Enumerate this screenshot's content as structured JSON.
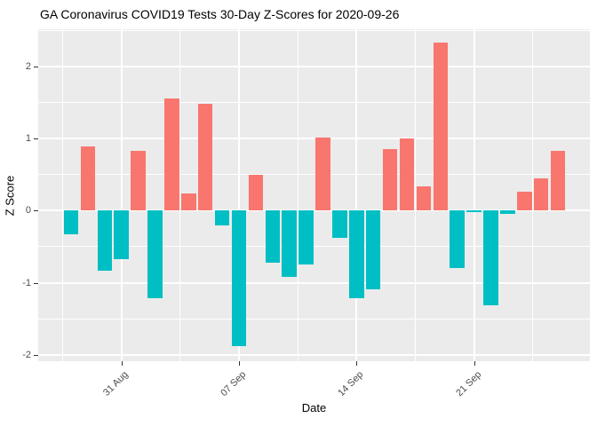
{
  "title": "GA Coronavirus COVID19 Tests 30-Day Z-Scores for 2020-09-26",
  "chart_data": {
    "type": "bar",
    "title": "GA Coronavirus COVID19 Tests 30-Day Z-Scores for 2020-09-26",
    "xlabel": "Date",
    "ylabel": "Z Score",
    "dates": [
      "2020-08-28",
      "2020-08-29",
      "2020-08-30",
      "2020-08-31",
      "2020-09-01",
      "2020-09-02",
      "2020-09-03",
      "2020-09-04",
      "2020-09-05",
      "2020-09-06",
      "2020-09-07",
      "2020-09-08",
      "2020-09-09",
      "2020-09-10",
      "2020-09-11",
      "2020-09-12",
      "2020-09-13",
      "2020-09-14",
      "2020-09-15",
      "2020-09-16",
      "2020-09-17",
      "2020-09-18",
      "2020-09-19",
      "2020-09-20",
      "2020-09-21",
      "2020-09-22",
      "2020-09-23",
      "2020-09-24",
      "2020-09-25",
      "2020-09-26"
    ],
    "values": [
      -0.33,
      0.89,
      -0.83,
      -0.67,
      0.83,
      -1.21,
      1.55,
      0.24,
      1.48,
      -0.21,
      -1.88,
      0.5,
      -0.72,
      -0.92,
      -0.75,
      1.01,
      -0.38,
      -1.22,
      -1.09,
      0.85,
      1.0,
      0.34,
      2.33,
      -0.8,
      -0.02,
      -1.31,
      -0.05,
      0.26,
      0.45,
      0.83
    ],
    "bar_color_positive": "#F8766D",
    "bar_color_negative": "#00BFC4",
    "panel_background": "#EBEBEB",
    "gridline_color": "#ffffff",
    "y_ticks": [
      -2,
      -1,
      0,
      1,
      2
    ],
    "y_minor_ticks": [
      -1.5,
      -0.5,
      0.5,
      1.5,
      2.5
    ],
    "ylim": [
      -2.1,
      2.53
    ],
    "x_tick_labels": [
      "31 Aug",
      "07 Sep",
      "14 Sep",
      "21 Sep"
    ],
    "x_tick_day_index": [
      3,
      10,
      17,
      24
    ],
    "x_minor_day_index": [
      -0.5,
      6.5,
      13.5,
      20.5,
      27.5
    ],
    "legend_position": "none",
    "grid": "white major+minor on grey panel"
  }
}
